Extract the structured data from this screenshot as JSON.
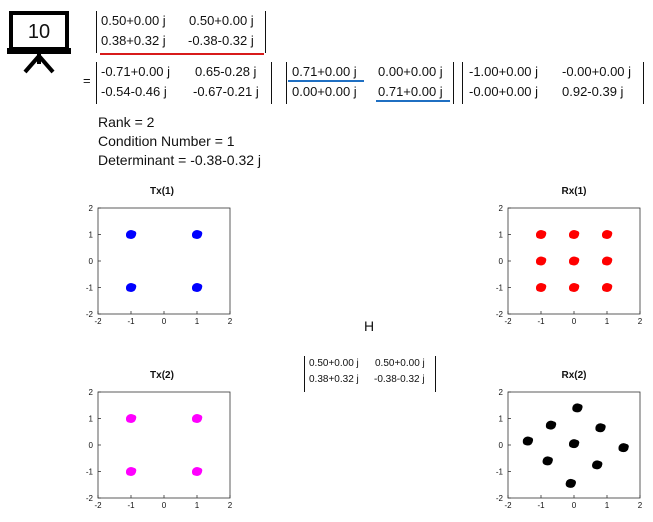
{
  "slide_badge": {
    "number": "10"
  },
  "equals_sign": "=",
  "H_matrix": [
    [
      "0.50+0.00 j",
      "0.50+0.00 j"
    ],
    [
      "0.38+0.32 j",
      "-0.38-0.32 j"
    ]
  ],
  "U_matrix": [
    [
      "-0.71+0.00 j",
      "0.65-0.28 j"
    ],
    [
      "-0.54-0.46 j",
      "-0.67-0.21 j"
    ]
  ],
  "S_matrix": [
    [
      "0.71+0.00 j",
      "0.00+0.00 j"
    ],
    [
      "0.00+0.00 j",
      "0.71+0.00 j"
    ]
  ],
  "V_matrix": [
    [
      "-1.00+0.00 j",
      "-0.00+0.00 j"
    ],
    [
      "-0.00+0.00 j",
      "0.92-0.39 j"
    ]
  ],
  "stats": {
    "rank": "Rank = 2",
    "condition": "Condition Number = 1",
    "determinant": "Determinant = -0.38-0.32 j"
  },
  "channel_label": "H",
  "small_matrix": [
    [
      "0.50+0.00 j",
      "0.50+0.00 j"
    ],
    [
      "0.38+0.32 j",
      "-0.38-0.32 j"
    ]
  ],
  "colors": {
    "blue": "#0000ff",
    "red": "#ff0000",
    "magenta": "#ff00ff",
    "black": "#000000",
    "underline_red": "#d81b1b",
    "underline_blue": "#1f6fc2"
  },
  "chart_data": [
    {
      "type": "scatter",
      "title": "Tx(1)",
      "color": "#0000ff",
      "xlim": [
        -2,
        2
      ],
      "ylim": [
        -2,
        2
      ],
      "xticks": [
        -2,
        -1,
        0,
        1,
        2
      ],
      "yticks": [
        -2,
        -1,
        0,
        1,
        2
      ],
      "points": [
        [
          -1,
          1
        ],
        [
          1,
          1
        ],
        [
          -1,
          -1
        ],
        [
          1,
          -1
        ]
      ]
    },
    {
      "type": "scatter",
      "title": "Rx(1)",
      "color": "#ff0000",
      "xlim": [
        -2,
        2
      ],
      "ylim": [
        -2,
        2
      ],
      "xticks": [
        -2,
        -1,
        0,
        1,
        2
      ],
      "yticks": [
        -2,
        -1,
        0,
        1,
        2
      ],
      "points": [
        [
          -1,
          1
        ],
        [
          0,
          1
        ],
        [
          1,
          1
        ],
        [
          -1,
          0
        ],
        [
          0,
          0
        ],
        [
          1,
          0
        ],
        [
          -1,
          -1
        ],
        [
          0,
          -1
        ],
        [
          1,
          -1
        ]
      ]
    },
    {
      "type": "scatter",
      "title": "Tx(2)",
      "color": "#ff00ff",
      "xlim": [
        -2,
        2
      ],
      "ylim": [
        -2,
        2
      ],
      "xticks": [
        -2,
        -1,
        0,
        1,
        2
      ],
      "yticks": [
        -2,
        -1,
        0,
        1,
        2
      ],
      "points": [
        [
          -1,
          1
        ],
        [
          1,
          1
        ],
        [
          -1,
          -1
        ],
        [
          1,
          -1
        ]
      ]
    },
    {
      "type": "scatter",
      "title": "Rx(2)",
      "color": "#000000",
      "xlim": [
        -2,
        2
      ],
      "ylim": [
        -2,
        2
      ],
      "xticks": [
        -2,
        -1,
        0,
        1,
        2
      ],
      "yticks": [
        -2,
        -1,
        0,
        1,
        2
      ],
      "points": [
        [
          0.1,
          1.4
        ],
        [
          -0.7,
          0.75
        ],
        [
          0.8,
          0.65
        ],
        [
          -1.4,
          0.15
        ],
        [
          0,
          0.05
        ],
        [
          1.5,
          -0.1
        ],
        [
          -0.8,
          -0.6
        ],
        [
          0.7,
          -0.75
        ],
        [
          -0.1,
          -1.45
        ]
      ]
    }
  ]
}
